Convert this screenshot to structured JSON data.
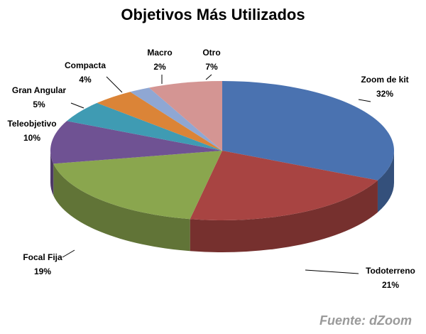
{
  "chart_data": {
    "type": "pie3d",
    "title": "Objetivos Más Utilizados",
    "categories": [
      "Zoom de kit",
      "Todoterreno",
      "Focal Fija",
      "Teleobjetivo",
      "Gran Angular",
      "Compacta",
      "Macro",
      "Otro"
    ],
    "values": [
      32,
      21,
      19,
      10,
      5,
      4,
      2,
      7
    ],
    "value_labels": [
      "32%",
      "21%",
      "19%",
      "10%",
      "5%",
      "4%",
      "2%",
      "7%"
    ],
    "colors": [
      "#4a72b0",
      "#a84442",
      "#8aa64e",
      "#6f5293",
      "#3f9bb3",
      "#db8437",
      "#8fa7d3",
      "#d49593"
    ],
    "annotation": "Fuente: dZoom"
  }
}
